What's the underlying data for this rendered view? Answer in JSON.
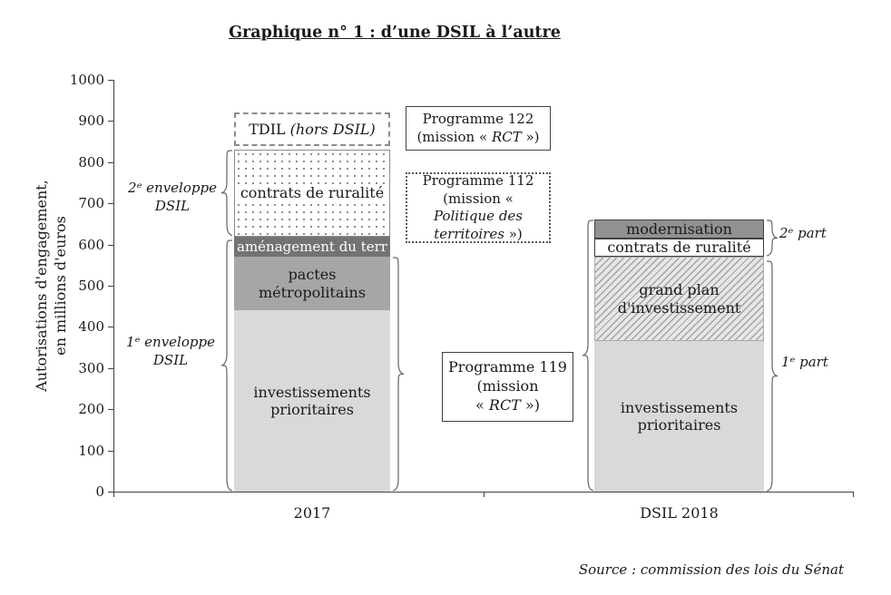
{
  "title": "Graphique n° 1 : d’une DSIL à l’autre",
  "source": "Source : commission des lois du Sénat",
  "chart_data": {
    "type": "bar",
    "stacked": true,
    "title": "Graphique n° 1 : d’une DSIL à l’autre",
    "ylabel": "Autorisations d'engagement, en millions d'euros",
    "ylabel_display": "Autorisations d'engagement,\nen millions d'euros",
    "ylim": [
      0,
      1000
    ],
    "yticks": [
      0,
      100,
      200,
      300,
      400,
      500,
      600,
      700,
      800,
      900,
      1000
    ],
    "unit": "millions d'euros",
    "grid": false,
    "legend_position": "none",
    "categories": [
      "2017",
      "DSIL 2018"
    ],
    "bars": [
      {
        "category": "2017",
        "segments": [
          {
            "label": "investissements prioritaires",
            "from": 0,
            "to": 440,
            "value": 440,
            "style": "light-gray"
          },
          {
            "label": "pactes métropolitains",
            "from": 440,
            "to": 570,
            "value": 130,
            "style": "medium-gray"
          },
          {
            "label": "aménagement du terr",
            "from": 570,
            "to": 620,
            "value": 50,
            "style": "dark-gray"
          },
          {
            "label": "contrats de ruralité",
            "from": 620,
            "to": 830,
            "value": 210,
            "style": "dotted"
          }
        ]
      },
      {
        "category": "DSIL 2018",
        "segments": [
          {
            "label": "investissements prioritaires",
            "from": 0,
            "to": 365,
            "value": 365,
            "style": "light-gray"
          },
          {
            "label": "grand plan d'investissement",
            "from": 365,
            "to": 570,
            "value": 205,
            "style": "hatched"
          },
          {
            "label": "contrats de ruralité",
            "from": 570,
            "to": 615,
            "value": 45,
            "style": "white"
          },
          {
            "label": "modernisation",
            "from": 615,
            "to": 660,
            "value": 45,
            "style": "dark-gray"
          }
        ]
      }
    ],
    "floating_boxes": [
      {
        "name": "TDIL",
        "qualifier": "(hors DSIL)",
        "from": 840,
        "to": 920,
        "over_category": "2017",
        "style": "dashed-outline"
      }
    ],
    "braces": {
      "env2_2017": {
        "from": 620,
        "to": 830
      },
      "env1_2017": {
        "from": 0,
        "to": 612
      },
      "right_2017": {
        "from": 0,
        "to": 570
      },
      "left_2018": {
        "from": 0,
        "to": 660
      },
      "part2_2018": {
        "from": 570,
        "to": 660
      },
      "part1_2018": {
        "from": 0,
        "to": 562
      }
    },
    "annotations": {
      "env2": "2ᵉ enveloppe\nDSIL",
      "env1": "1ᵉ enveloppe\nDSIL",
      "part2": "2ᵉ part",
      "part1": "1ᵉ part",
      "prog122": {
        "title": "Programme 122",
        "prefix": "(mission « ",
        "mission": "RCT",
        "suffix": " »)"
      },
      "prog112": {
        "title": "Programme 112",
        "prefix": "(mission « ",
        "mission": "Politique des territoires",
        "suffix": " »)"
      },
      "prog119": {
        "title": "Programme 119",
        "line2": "(mission",
        "prefix": "« ",
        "mission": "RCT",
        "suffix": " »)"
      }
    },
    "colors": {
      "light_gray": "#d9d9d9",
      "medium_gray": "#a6a6a6",
      "dark_gray": "#737373",
      "modernisation_gray": "#919191",
      "axis": "#404040"
    }
  }
}
